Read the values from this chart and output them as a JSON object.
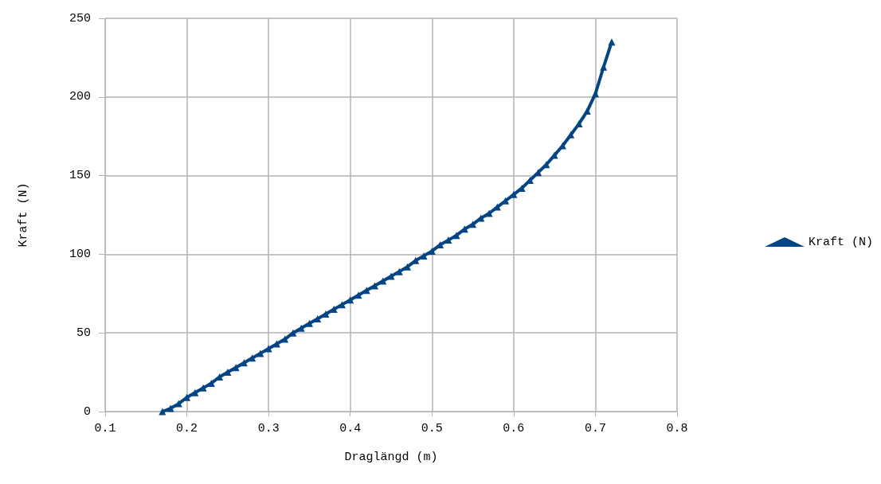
{
  "chart_data": {
    "type": "line",
    "xlabel": "Draglängd (m)",
    "ylabel": "Kraft (N)",
    "x": [
      0.17,
      0.18,
      0.19,
      0.2,
      0.21,
      0.22,
      0.23,
      0.24,
      0.25,
      0.26,
      0.27,
      0.28,
      0.29,
      0.3,
      0.31,
      0.32,
      0.33,
      0.34,
      0.35,
      0.36,
      0.37,
      0.38,
      0.39,
      0.4,
      0.41,
      0.42,
      0.43,
      0.44,
      0.45,
      0.46,
      0.47,
      0.48,
      0.49,
      0.5,
      0.51,
      0.52,
      0.53,
      0.54,
      0.55,
      0.56,
      0.57,
      0.58,
      0.59,
      0.6,
      0.61,
      0.62,
      0.63,
      0.64,
      0.65,
      0.66,
      0.67,
      0.68,
      0.69,
      0.7,
      0.71,
      0.72
    ],
    "series": [
      {
        "name": "Kraft (N)",
        "color": "#004586",
        "values": [
          0,
          2,
          5,
          9,
          12,
          15,
          18,
          22,
          25,
          28,
          31,
          34,
          37,
          40,
          43,
          46,
          50,
          53,
          56,
          59,
          62,
          65,
          68,
          71,
          74,
          77,
          80,
          83,
          86,
          89,
          92,
          96,
          99,
          102,
          106,
          109,
          112,
          116,
          119,
          123,
          126,
          130,
          134,
          138,
          142,
          147,
          152,
          157,
          163,
          169,
          176,
          183,
          191,
          202,
          219,
          235
        ]
      }
    ],
    "xlim": [
      0.1,
      0.8
    ],
    "xticks": [
      0.1,
      0.2,
      0.3,
      0.4,
      0.5,
      0.6,
      0.7,
      0.8
    ],
    "ylim": [
      0,
      250
    ],
    "yticks": [
      0,
      50,
      100,
      150,
      200,
      250
    ],
    "grid": true,
    "legend": "right",
    "marker": "triangle",
    "line_style": "solid"
  }
}
